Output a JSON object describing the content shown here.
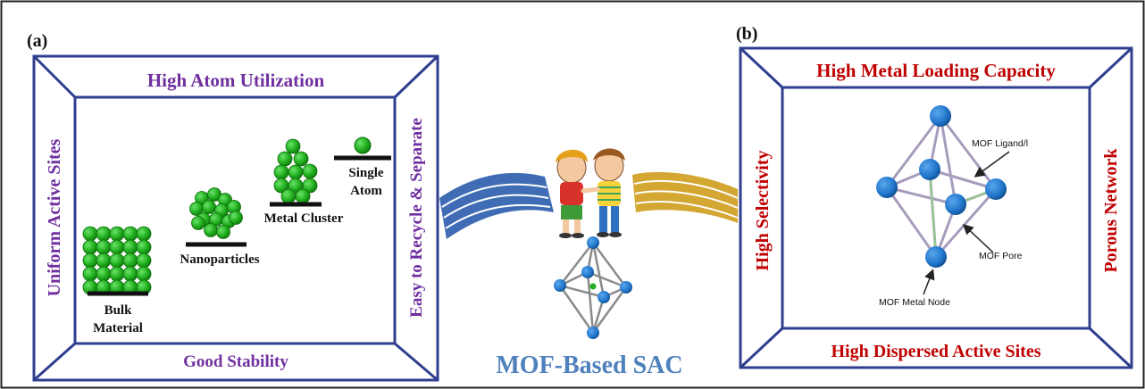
{
  "panel_a": {
    "label": "(a)",
    "top_text": "High Atom Utilization",
    "bottom_text": "Good Stability",
    "left_text": "Uniform Active Sites",
    "right_text": "Easy to Recycle & Separate",
    "stages": [
      {
        "label_line1": "Bulk",
        "label_line2": "Material"
      },
      {
        "label_line1": "Nanoparticles"
      },
      {
        "label_line1": "Metal Cluster"
      },
      {
        "label_line1": "Single",
        "label_line2": "Atom"
      }
    ]
  },
  "center": {
    "title": "MOF-Based SAC"
  },
  "panel_b": {
    "label": "(b)",
    "top_text": "High Metal Loading Capacity",
    "bottom_text": "High Dispersed Active Sites",
    "left_text": "High Selectivity",
    "right_text": "Porous Network",
    "annotations": {
      "ligand": "MOF Ligand/l",
      "pore": "MOF Pore",
      "node": "MOF Metal  Node"
    }
  },
  "colors": {
    "frame": "#2f3e8f",
    "purple_text": "#7030a0",
    "red_text": "#c00000",
    "sphere": "#22b01f",
    "sphere_stroke": "#0d6e0c",
    "node_blue": "#1f74c9",
    "mof_title": "#4f81bd",
    "wave_blue": "#3f6cb5",
    "wave_gold": "#d4a632"
  }
}
